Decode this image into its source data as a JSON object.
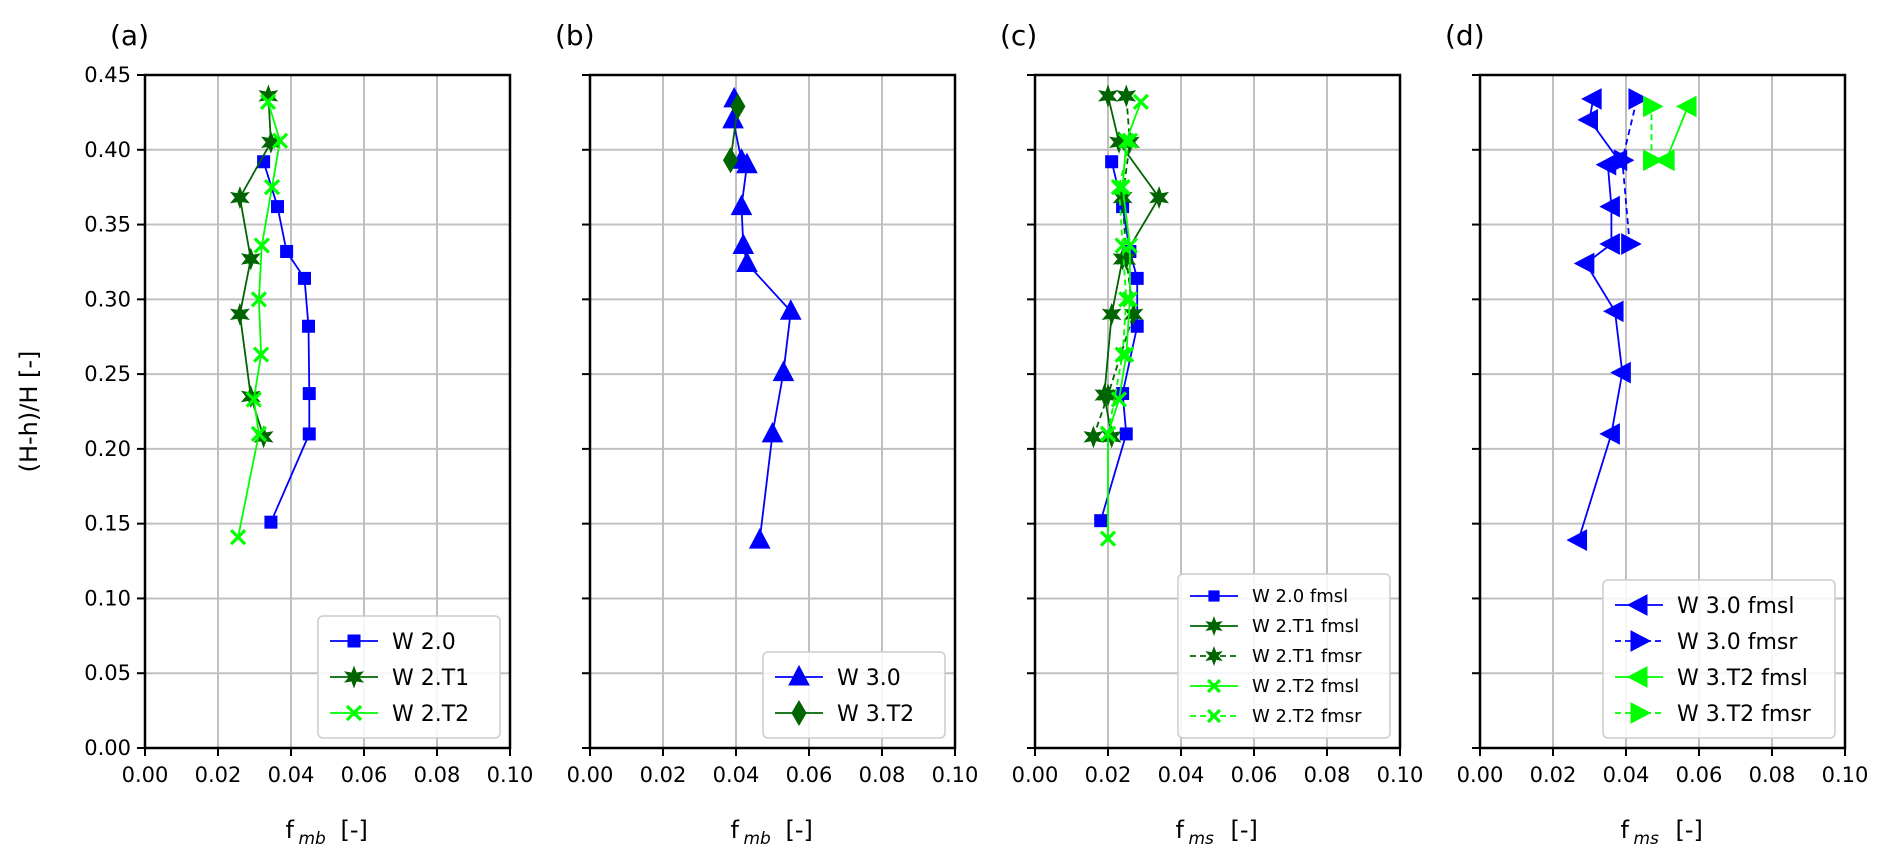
{
  "figure": {
    "ylabel": "(H-h)/H  [-]",
    "ylim": [
      0.0,
      0.45
    ],
    "yticks": [
      "0.00",
      "0.05",
      "0.10",
      "0.15",
      "0.20",
      "0.25",
      "0.30",
      "0.35",
      "0.40",
      "0.45"
    ],
    "xticks": [
      "0.00",
      "0.02",
      "0.04",
      "0.06",
      "0.08",
      "0.10"
    ]
  },
  "colors": {
    "blue": "#0000ff",
    "darkgreen": "#006400",
    "lime": "#00ff00",
    "grid": "#c0c0c0"
  },
  "chart_data": [
    {
      "panel": "(a)",
      "type": "line",
      "xlabel_main": "f",
      "xlabel_sub": "mb",
      "xlabel_unit": "[-]",
      "xlim": [
        0.0,
        0.1
      ],
      "ylim": [
        0.0,
        0.45
      ],
      "grid": true,
      "legend_position": "lower-right",
      "series": [
        {
          "name": "W 2.0",
          "color": "#0000ff",
          "marker": "square",
          "dash": false,
          "points": [
            [
              0.0345,
              0.151
            ],
            [
              0.045,
              0.21
            ],
            [
              0.045,
              0.237
            ],
            [
              0.0448,
              0.282
            ],
            [
              0.0437,
              0.314
            ],
            [
              0.0388,
              0.332
            ],
            [
              0.0363,
              0.362
            ],
            [
              0.0325,
              0.392
            ]
          ]
        },
        {
          "name": "W 2.T1",
          "color": "#006400",
          "marker": "star",
          "dash": false,
          "points": [
            [
              0.0325,
              0.208
            ],
            [
              0.029,
              0.235
            ],
            [
              0.026,
              0.29
            ],
            [
              0.029,
              0.327
            ],
            [
              0.026,
              0.368
            ],
            [
              0.0345,
              0.405
            ],
            [
              0.0338,
              0.436
            ]
          ]
        },
        {
          "name": "W 2.T2",
          "color": "#00ff00",
          "marker": "x",
          "dash": false,
          "points": [
            [
              0.0255,
              0.141
            ],
            [
              0.0312,
              0.21
            ],
            [
              0.0298,
              0.233
            ],
            [
              0.0318,
              0.263
            ],
            [
              0.0312,
              0.3
            ],
            [
              0.032,
              0.336
            ],
            [
              0.0348,
              0.375
            ],
            [
              0.037,
              0.406
            ],
            [
              0.0337,
              0.432
            ]
          ]
        }
      ]
    },
    {
      "panel": "(b)",
      "type": "line",
      "xlabel_main": "f",
      "xlabel_sub": "mb",
      "xlabel_unit": "[-]",
      "xlim": [
        0.0,
        0.1
      ],
      "ylim": [
        0.0,
        0.45
      ],
      "grid": true,
      "legend_position": "lower-right",
      "series": [
        {
          "name": "W 3.0",
          "color": "#0000ff",
          "marker": "triangle-up",
          "dash": false,
          "points": [
            [
              0.0465,
              0.139
            ],
            [
              0.05,
              0.21
            ],
            [
              0.053,
              0.251
            ],
            [
              0.055,
              0.292
            ],
            [
              0.043,
              0.324
            ],
            [
              0.042,
              0.336
            ],
            [
              0.0415,
              0.362
            ],
            [
              0.043,
              0.39
            ],
            [
              0.0415,
              0.393
            ],
            [
              0.0392,
              0.42
            ],
            [
              0.0395,
              0.434
            ]
          ]
        },
        {
          "name": "W 3.T2",
          "color": "#006400",
          "marker": "diamond",
          "dash": false,
          "points": [
            [
              0.0385,
              0.393
            ],
            [
              0.0405,
              0.429
            ]
          ]
        }
      ]
    },
    {
      "panel": "(c)",
      "type": "line",
      "xlabel_main": "f",
      "xlabel_sub": "ms",
      "xlabel_unit": "[-]",
      "xlim": [
        0.0,
        0.1
      ],
      "ylim": [
        0.0,
        0.45
      ],
      "grid": true,
      "legend_position": "lower-right",
      "series": [
        {
          "name": "W 2.0 fmsl",
          "color": "#0000ff",
          "marker": "square",
          "dash": false,
          "points": [
            [
              0.018,
              0.152
            ],
            [
              0.025,
              0.21
            ],
            [
              0.024,
              0.237
            ],
            [
              0.028,
              0.282
            ],
            [
              0.028,
              0.314
            ],
            [
              0.026,
              0.332
            ],
            [
              0.024,
              0.362
            ],
            [
              0.021,
              0.392
            ]
          ]
        },
        {
          "name": "W 2.T1 fmsl",
          "color": "#006400",
          "marker": "star",
          "dash": false,
          "points": [
            [
              0.021,
              0.208
            ],
            [
              0.019,
              0.236
            ],
            [
              0.021,
              0.29
            ],
            [
              0.024,
              0.327
            ],
            [
              0.034,
              0.368
            ],
            [
              0.023,
              0.405
            ],
            [
              0.02,
              0.436
            ]
          ]
        },
        {
          "name": "W 2.T1 fmsr",
          "color": "#006400",
          "marker": "star",
          "dash": true,
          "points": [
            [
              0.016,
              0.208
            ],
            [
              0.02,
              0.236
            ],
            [
              0.027,
              0.29
            ],
            [
              0.025,
              0.327
            ],
            [
              0.024,
              0.368
            ],
            [
              0.026,
              0.405
            ],
            [
              0.025,
              0.436
            ]
          ]
        },
        {
          "name": "W 2.T2 fmsl",
          "color": "#00ff00",
          "marker": "x",
          "dash": false,
          "points": [
            [
              0.02,
              0.14
            ],
            [
              0.02,
              0.21
            ],
            [
              0.023,
              0.233
            ],
            [
              0.025,
              0.263
            ],
            [
              0.026,
              0.3
            ],
            [
              0.026,
              0.336
            ],
            [
              0.024,
              0.375
            ],
            [
              0.025,
              0.406
            ],
            [
              0.029,
              0.432
            ]
          ]
        },
        {
          "name": "W 2.T2 fmsr",
          "color": "#00ff00",
          "marker": "x",
          "dash": true,
          "points": [
            [
              0.02,
              0.21
            ],
            [
              0.024,
              0.263
            ],
            [
              0.025,
              0.3
            ],
            [
              0.024,
              0.336
            ],
            [
              0.023,
              0.375
            ],
            [
              0.026,
              0.406
            ]
          ]
        }
      ]
    },
    {
      "panel": "(d)",
      "type": "line",
      "xlabel_main": "f",
      "xlabel_sub": "ms",
      "xlabel_unit": "[-]",
      "xlim": [
        0.0,
        0.1
      ],
      "ylim": [
        0.0,
        0.45
      ],
      "grid": true,
      "legend_position": "lower-right",
      "series": [
        {
          "name": "W 3.0 fmsl",
          "color": "#0000ff",
          "marker": "triangle-left",
          "dash": false,
          "points": [
            [
              0.027,
              0.139
            ],
            [
              0.036,
              0.21
            ],
            [
              0.039,
              0.251
            ],
            [
              0.037,
              0.292
            ],
            [
              0.029,
              0.324
            ],
            [
              0.036,
              0.337
            ],
            [
              0.036,
              0.362
            ],
            [
              0.035,
              0.39
            ],
            [
              0.038,
              0.393
            ],
            [
              0.03,
              0.42
            ],
            [
              0.031,
              0.434
            ]
          ]
        },
        {
          "name": "W 3.0 fmsr",
          "color": "#0000ff",
          "marker": "triangle-right",
          "dash": true,
          "points": [
            [
              0.041,
              0.337
            ],
            [
              0.039,
              0.393
            ],
            [
              0.043,
              0.434
            ]
          ]
        },
        {
          "name": "W 3.T2 fmsl",
          "color": "#00ff00",
          "marker": "triangle-left",
          "dash": false,
          "points": [
            [
              0.051,
              0.393
            ],
            [
              0.057,
              0.429
            ]
          ]
        },
        {
          "name": "W 3.T2 fmsr",
          "color": "#00ff00",
          "marker": "triangle-right",
          "dash": true,
          "points": [
            [
              0.047,
              0.393
            ],
            [
              0.047,
              0.429
            ]
          ]
        }
      ]
    }
  ]
}
